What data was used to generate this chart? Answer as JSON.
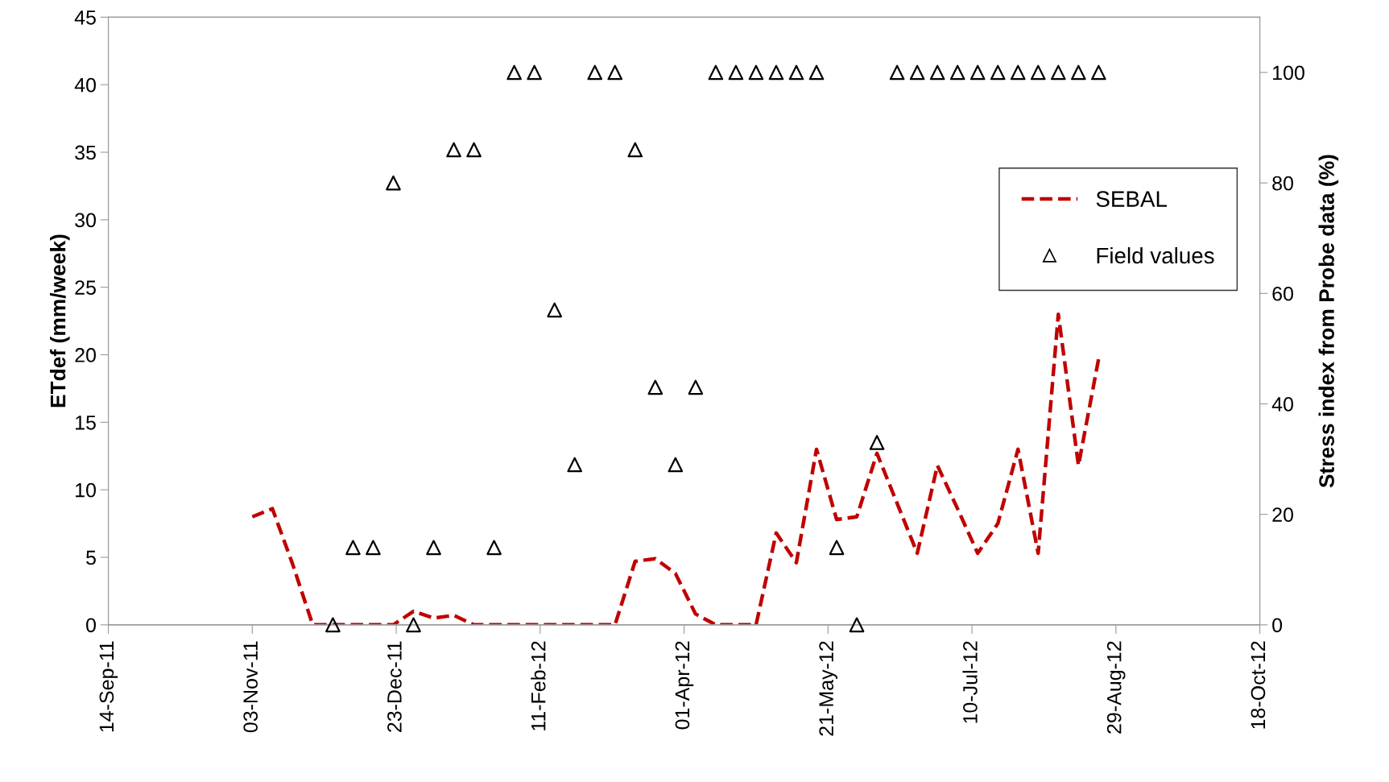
{
  "chart_data": {
    "type": "line",
    "ylabel": "ETdef (mm/week)",
    "y2label": "Stress index from Probe data (%)",
    "xlim": [
      "2011-09-14",
      "2012-10-18"
    ],
    "xticks": [
      {
        "value": "2011-09-14",
        "label": "14-Sep-11"
      },
      {
        "value": "2011-11-03",
        "label": "03-Nov-11"
      },
      {
        "value": "2011-12-23",
        "label": "23-Dec-11"
      },
      {
        "value": "2012-02-11",
        "label": "11-Feb-12"
      },
      {
        "value": "2012-04-01",
        "label": "01-Apr-12"
      },
      {
        "value": "2012-05-21",
        "label": "21-May-12"
      },
      {
        "value": "2012-07-10",
        "label": "10-Jul-12"
      },
      {
        "value": "2012-08-29",
        "label": "29-Aug-12"
      },
      {
        "value": "2012-10-18",
        "label": "18-Oct-12"
      }
    ],
    "ylim": [
      0,
      45
    ],
    "yticks": [
      0,
      5,
      10,
      15,
      20,
      25,
      30,
      35,
      40,
      45
    ],
    "y2lim": [
      0,
      110
    ],
    "y2ticks": [
      0,
      20,
      40,
      60,
      80,
      100
    ],
    "grid": false,
    "legend": "top right",
    "series": [
      {
        "name": "SEBAL",
        "color": "#c00000",
        "line_style": "dashed",
        "marker": "none",
        "x": [
          "2011-11-03",
          "2011-11-10",
          "2011-11-17",
          "2011-11-24",
          "2011-12-01",
          "2011-12-08",
          "2011-12-15",
          "2011-12-22",
          "2011-12-29",
          "2012-01-05",
          "2012-01-12",
          "2012-01-19",
          "2012-01-26",
          "2012-02-02",
          "2012-02-09",
          "2012-02-16",
          "2012-02-23",
          "2012-03-01",
          "2012-03-08",
          "2012-03-15",
          "2012-03-22",
          "2012-03-29",
          "2012-04-05",
          "2012-04-12",
          "2012-04-19",
          "2012-04-26",
          "2012-05-03",
          "2012-05-10",
          "2012-05-17",
          "2012-05-24",
          "2012-05-31",
          "2012-06-07",
          "2012-06-14",
          "2012-06-21",
          "2012-06-28",
          "2012-07-05",
          "2012-07-12",
          "2012-07-19",
          "2012-07-26",
          "2012-08-02",
          "2012-08-09",
          "2012-08-16",
          "2012-08-23"
        ],
        "values": [
          8.0,
          8.6,
          4.5,
          0,
          0,
          0,
          0,
          0,
          1.0,
          0.5,
          0.7,
          0,
          0,
          0,
          0,
          0,
          0,
          0,
          0,
          4.7,
          4.9,
          3.8,
          0.8,
          0,
          0,
          0,
          6.8,
          4.6,
          13,
          7.8,
          8,
          12.7,
          9,
          5.3,
          11.8,
          8.6,
          5.3,
          7.5,
          13,
          5.3,
          23,
          11.8,
          19.7
        ]
      },
      {
        "name": "Field values",
        "type": "scatter",
        "axis": "y2",
        "color": "#000000",
        "marker": "triangle",
        "x": [
          "2011-12-01",
          "2011-12-08",
          "2011-12-15",
          "2011-12-22",
          "2011-12-29",
          "2012-01-05",
          "2012-01-12",
          "2012-01-19",
          "2012-01-26",
          "2012-02-02",
          "2012-02-09",
          "2012-02-16",
          "2012-02-23",
          "2012-03-01",
          "2012-03-08",
          "2012-03-15",
          "2012-03-22",
          "2012-03-29",
          "2012-04-05",
          "2012-04-12",
          "2012-04-19",
          "2012-04-26",
          "2012-05-03",
          "2012-05-10",
          "2012-05-17",
          "2012-05-24",
          "2012-05-31",
          "2012-06-07",
          "2012-06-14",
          "2012-06-21",
          "2012-06-28",
          "2012-07-05",
          "2012-07-12",
          "2012-07-19",
          "2012-07-26",
          "2012-08-02",
          "2012-08-09",
          "2012-08-16",
          "2012-08-23"
        ],
        "values": [
          0,
          14,
          14,
          80,
          0,
          14,
          86,
          86,
          14,
          100,
          100,
          57,
          29,
          100,
          100,
          86,
          43,
          29,
          43,
          100,
          100,
          100,
          100,
          100,
          100,
          14,
          0,
          33,
          100,
          100,
          100,
          100,
          100,
          100,
          100,
          100,
          100,
          100,
          100
        ]
      }
    ]
  }
}
